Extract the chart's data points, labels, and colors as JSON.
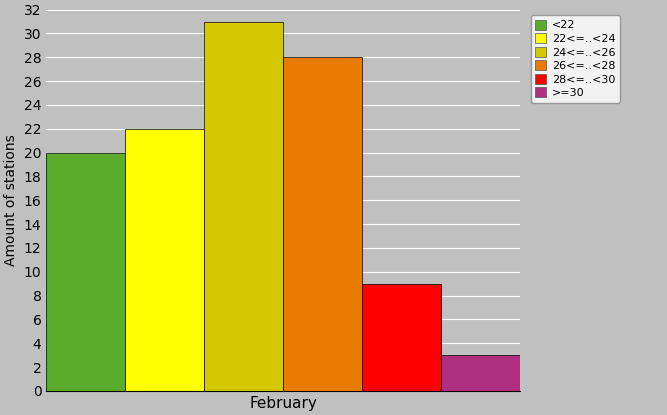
{
  "categories": [
    "<22",
    "22<=..<24",
    "24<=..<26",
    "26<=..<28",
    "28<=..<30",
    ">=30"
  ],
  "values": [
    20,
    22,
    31,
    28,
    9,
    3
  ],
  "colors": [
    "#5aac2a",
    "#ffff00",
    "#d4c800",
    "#e87c00",
    "#ff0000",
    "#b03080"
  ],
  "xlabel": "February",
  "ylabel": "Amount of stations",
  "ylim": [
    0,
    32
  ],
  "yticks": [
    0,
    2,
    4,
    6,
    8,
    10,
    12,
    14,
    16,
    18,
    20,
    22,
    24,
    26,
    28,
    30,
    32
  ],
  "background_color": "#c0c0c0",
  "plot_bg_color": "#c0c0c0",
  "legend_labels": [
    "<22",
    "22<=..<24",
    "24<=..<26",
    "26<=..<28",
    "28<=..<30",
    ">=30"
  ],
  "bar_width": 1.0
}
